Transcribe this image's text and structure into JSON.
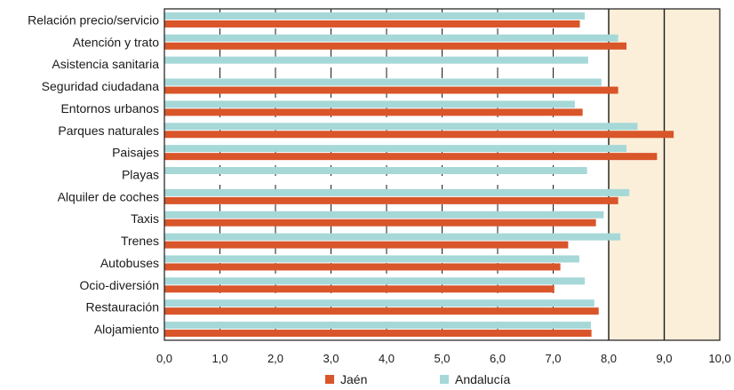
{
  "chart_data": {
    "type": "bar",
    "orientation": "horizontal",
    "title": "",
    "xlabel": "",
    "ylabel": "",
    "xlim": [
      0,
      10
    ],
    "x_ticks": [
      "0,0",
      "1,0",
      "2,0",
      "3,0",
      "4,0",
      "5,0",
      "6,0",
      "7,0",
      "8,0",
      "9,0",
      "10,0"
    ],
    "grid": true,
    "legend_position": "bottom",
    "highlight_band": [
      8,
      10
    ],
    "categories": [
      "Relación precio/servicio",
      "Atención y trato",
      "Asistencia sanitaria",
      "Seguridad ciudadana",
      "Entornos urbanos",
      "Parques naturales",
      "Paisajes",
      "Playas",
      "Alquiler de coches",
      "Taxis",
      "Trenes",
      "Autobuses",
      "Ocio-diversión",
      "Restauración",
      "Alojamiento"
    ],
    "series": [
      {
        "name": "Jaén",
        "color": "#d9552a",
        "values": [
          7.48,
          8.32,
          null,
          8.17,
          7.53,
          9.17,
          8.87,
          null,
          8.17,
          7.77,
          7.27,
          7.13,
          7.02,
          7.82,
          7.69
        ]
      },
      {
        "name": "Andalucía",
        "color": "#a6d8d8",
        "values": [
          7.57,
          8.17,
          7.63,
          7.87,
          7.39,
          8.52,
          8.32,
          7.61,
          8.37,
          7.91,
          8.21,
          7.47,
          7.57,
          7.74,
          7.68
        ]
      }
    ]
  },
  "colors": {
    "band": "#fbefd9",
    "gridline": "#1a1a1a",
    "axis": "#1a1a1a"
  }
}
